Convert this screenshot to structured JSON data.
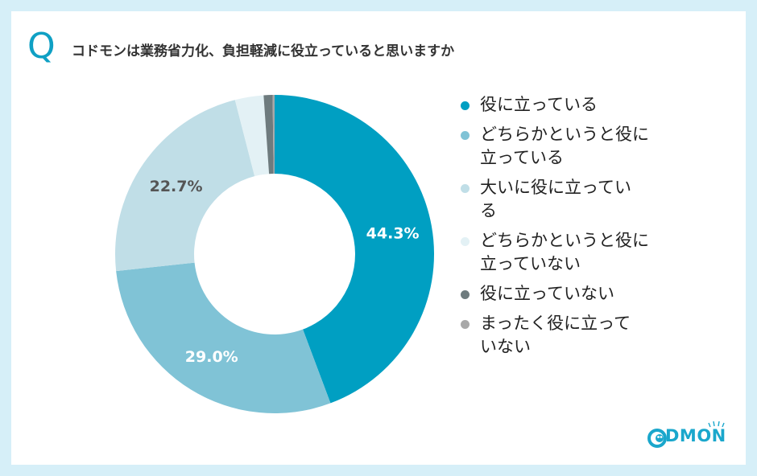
{
  "question": {
    "mark": "Q",
    "text": "コドモンは業務省力化、負担軽減に役立っていると思いますか"
  },
  "chart_data": {
    "type": "pie",
    "subtype": "donut",
    "legend_position": "right",
    "categories": [
      "役に立っている",
      "どちらかというと役に立っている",
      "大いに役に立っている",
      "どちらかというと役に立っていない",
      "役に立っていない",
      "まったく役に立っていない"
    ],
    "values": [
      44.3,
      29.0,
      22.7,
      2.9,
      0.9,
      0.2
    ],
    "data_labels": [
      "44.3%",
      "29.0%",
      "22.7%",
      "",
      "",
      ""
    ],
    "colors": [
      "#009fc2",
      "#80c3d6",
      "#c0dee7",
      "#e3f1f5",
      "#6e7b7e",
      "#a8a8a8"
    ],
    "label_colors": [
      "#ffffff",
      "#ffffff",
      "#555555",
      "",
      "",
      ""
    ]
  },
  "legend": {
    "items": [
      [
        "役に立っている"
      ],
      [
        "どちらかというと役に",
        "立っている"
      ],
      [
        "大いに役に立ってい",
        "る"
      ],
      [
        "どちらかというと役に",
        "立っていない"
      ],
      [
        "役に立っていない"
      ],
      [
        "まったく役に立って",
        "いない"
      ]
    ]
  },
  "logo": {
    "text": "DMON",
    "icon": "codmon-face-logo-icon"
  }
}
